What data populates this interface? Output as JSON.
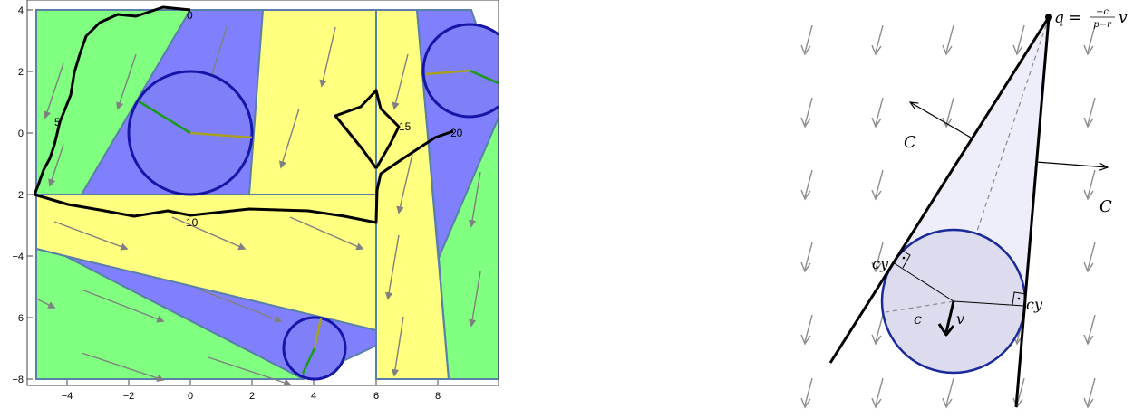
{
  "left_plot": {
    "x_ticks": [
      "−4",
      "−2",
      "0",
      "2",
      "4",
      "6",
      "8"
    ],
    "y_ticks": [
      "4",
      "2",
      "0",
      "−2",
      "−4",
      "−6",
      "−8"
    ],
    "path_labels": [
      "0",
      "5",
      "10",
      "15",
      "20"
    ],
    "colors": {
      "green": "#80ff80",
      "blue": "#8080ff",
      "yellow": "#ffff80",
      "region_border": "#5a7fa8",
      "circle_fill": "#7f7ff7",
      "circle_border": "#1515a8",
      "arrow": "#808080"
    }
  },
  "right_diagram": {
    "label_q_main": "q =",
    "label_q_num": "−c",
    "label_q_den": "p−r",
    "label_q_v": "v",
    "label_C_left": "C",
    "label_C_right": "C",
    "label_cy_left": "cy",
    "label_cy_right": "cy",
    "label_c": "c",
    "label_v": "v",
    "colors": {
      "disk_fill": "#dcdcee",
      "disk_border": "#1a2a9c",
      "cone_fill": "#eeeefa",
      "arrow": "#8c8c8c"
    }
  }
}
